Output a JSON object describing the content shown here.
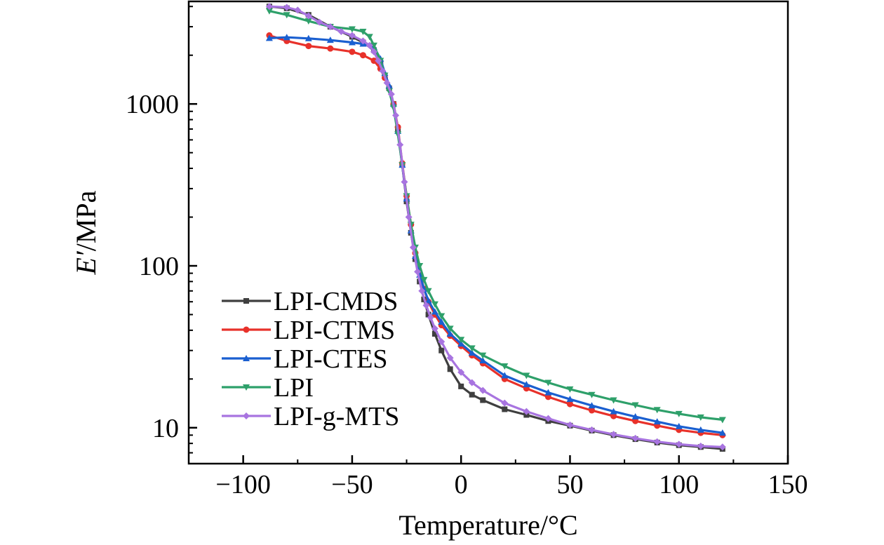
{
  "chart_data": {
    "type": "line",
    "xlabel": "Temperature/°C",
    "ylabel_italic": "E′",
    "ylabel_rest": "/MPa",
    "xlim": [
      -125,
      150
    ],
    "ylim": [
      6,
      4300
    ],
    "yscale": "log",
    "xticks": [
      -100,
      -50,
      0,
      50,
      100,
      150
    ],
    "xtick_labels": [
      "−100",
      "−50",
      "0",
      "50",
      "100",
      "150"
    ],
    "yticks": [
      10,
      100,
      1000
    ],
    "ytick_labels": [
      "10",
      "100",
      "1000"
    ],
    "grid": false,
    "legend_position": "bottom-left",
    "series": [
      {
        "name": "LPI-CMDS",
        "color": "#3f3f3f",
        "marker": "square",
        "points": [
          [
            -88,
            4000
          ],
          [
            -80,
            3900
          ],
          [
            -70,
            3550
          ],
          [
            -60,
            3000
          ],
          [
            -50,
            2600
          ],
          [
            -45,
            2400
          ],
          [
            -40,
            2150
          ],
          [
            -37,
            1800
          ],
          [
            -35,
            1500
          ],
          [
            -33,
            1250
          ],
          [
            -31,
            1000
          ],
          [
            -29,
            700
          ],
          [
            -27,
            420
          ],
          [
            -25,
            250
          ],
          [
            -23,
            160
          ],
          [
            -21,
            110
          ],
          [
            -19,
            80
          ],
          [
            -17,
            62
          ],
          [
            -15,
            50
          ],
          [
            -12,
            38
          ],
          [
            -9,
            30
          ],
          [
            -5,
            23
          ],
          [
            0,
            18
          ],
          [
            5,
            16
          ],
          [
            10,
            14.8
          ],
          [
            20,
            13
          ],
          [
            30,
            12
          ],
          [
            40,
            11
          ],
          [
            50,
            10.3
          ],
          [
            60,
            9.6
          ],
          [
            70,
            9
          ],
          [
            80,
            8.5
          ],
          [
            90,
            8.1
          ],
          [
            100,
            7.8
          ],
          [
            110,
            7.6
          ],
          [
            120,
            7.4
          ]
        ]
      },
      {
        "name": "LPI-CTMS",
        "color": "#e8312a",
        "marker": "circle",
        "points": [
          [
            -88,
            2650
          ],
          [
            -80,
            2450
          ],
          [
            -70,
            2280
          ],
          [
            -60,
            2200
          ],
          [
            -50,
            2100
          ],
          [
            -45,
            2000
          ],
          [
            -40,
            1850
          ],
          [
            -37,
            1650
          ],
          [
            -35,
            1450
          ],
          [
            -33,
            1250
          ],
          [
            -31,
            1000
          ],
          [
            -29,
            720
          ],
          [
            -27,
            430
          ],
          [
            -25,
            270
          ],
          [
            -23,
            180
          ],
          [
            -21,
            120
          ],
          [
            -19,
            90
          ],
          [
            -17,
            72
          ],
          [
            -15,
            60
          ],
          [
            -12,
            50
          ],
          [
            -9,
            43
          ],
          [
            -5,
            37
          ],
          [
            0,
            32
          ],
          [
            5,
            28
          ],
          [
            10,
            25
          ],
          [
            20,
            20
          ],
          [
            30,
            17.5
          ],
          [
            40,
            15.5
          ],
          [
            50,
            14
          ],
          [
            60,
            12.8
          ],
          [
            70,
            11.8
          ],
          [
            80,
            11
          ],
          [
            90,
            10.3
          ],
          [
            100,
            9.7
          ],
          [
            110,
            9.3
          ],
          [
            120,
            9
          ]
        ]
      },
      {
        "name": "LPI-CTES",
        "color": "#1a5fd0",
        "marker": "triangle-up",
        "points": [
          [
            -88,
            2550
          ],
          [
            -80,
            2580
          ],
          [
            -70,
            2540
          ],
          [
            -60,
            2480
          ],
          [
            -50,
            2400
          ],
          [
            -45,
            2350
          ],
          [
            -40,
            2250
          ],
          [
            -37,
            1900
          ],
          [
            -35,
            1550
          ],
          [
            -33,
            1300
          ],
          [
            -31,
            1000
          ],
          [
            -29,
            680
          ],
          [
            -27,
            420
          ],
          [
            -25,
            260
          ],
          [
            -23,
            165
          ],
          [
            -21,
            115
          ],
          [
            -19,
            88
          ],
          [
            -17,
            72
          ],
          [
            -15,
            61
          ],
          [
            -12,
            52
          ],
          [
            -9,
            45
          ],
          [
            -5,
            38
          ],
          [
            0,
            33
          ],
          [
            5,
            29
          ],
          [
            10,
            26
          ],
          [
            20,
            21
          ],
          [
            30,
            18.5
          ],
          [
            40,
            16.5
          ],
          [
            50,
            15
          ],
          [
            60,
            13.7
          ],
          [
            70,
            12.6
          ],
          [
            80,
            11.7
          ],
          [
            90,
            10.9
          ],
          [
            100,
            10.2
          ],
          [
            110,
            9.7
          ],
          [
            120,
            9.3
          ]
        ]
      },
      {
        "name": "LPI",
        "color": "#2ea06a",
        "marker": "triangle-down",
        "points": [
          [
            -88,
            3750
          ],
          [
            -80,
            3550
          ],
          [
            -70,
            3250
          ],
          [
            -60,
            3000
          ],
          [
            -50,
            2900
          ],
          [
            -45,
            2800
          ],
          [
            -42,
            2600
          ],
          [
            -40,
            2300
          ],
          [
            -37,
            1850
          ],
          [
            -35,
            1500
          ],
          [
            -33,
            1200
          ],
          [
            -31,
            950
          ],
          [
            -29,
            650
          ],
          [
            -27,
            420
          ],
          [
            -25,
            270
          ],
          [
            -23,
            180
          ],
          [
            -21,
            130
          ],
          [
            -19,
            100
          ],
          [
            -17,
            82
          ],
          [
            -15,
            70
          ],
          [
            -12,
            58
          ],
          [
            -9,
            49
          ],
          [
            -5,
            41
          ],
          [
            0,
            35
          ],
          [
            5,
            31
          ],
          [
            10,
            28
          ],
          [
            20,
            24
          ],
          [
            30,
            21
          ],
          [
            40,
            19
          ],
          [
            50,
            17.3
          ],
          [
            60,
            16
          ],
          [
            70,
            14.8
          ],
          [
            80,
            13.8
          ],
          [
            90,
            12.9
          ],
          [
            100,
            12.2
          ],
          [
            110,
            11.6
          ],
          [
            120,
            11.2
          ]
        ]
      },
      {
        "name": "LPI-g-MTS",
        "color": "#a874e0",
        "marker": "diamond",
        "points": [
          [
            -88,
            4000
          ],
          [
            -80,
            3950
          ],
          [
            -75,
            3800
          ],
          [
            -70,
            3500
          ],
          [
            -65,
            3200
          ],
          [
            -60,
            3000
          ],
          [
            -55,
            2800
          ],
          [
            -50,
            2650
          ],
          [
            -45,
            2450
          ],
          [
            -42,
            2300
          ],
          [
            -40,
            2100
          ],
          [
            -38,
            1850
          ],
          [
            -36,
            1600
          ],
          [
            -34,
            1350
          ],
          [
            -32,
            1150
          ],
          [
            -30,
            850
          ],
          [
            -28,
            560
          ],
          [
            -26,
            330
          ],
          [
            -24,
            200
          ],
          [
            -22,
            130
          ],
          [
            -20,
            92
          ],
          [
            -18,
            70
          ],
          [
            -16,
            57
          ],
          [
            -14,
            48
          ],
          [
            -12,
            41
          ],
          [
            -9,
            34
          ],
          [
            -5,
            27
          ],
          [
            0,
            22
          ],
          [
            5,
            19
          ],
          [
            10,
            17
          ],
          [
            20,
            14.2
          ],
          [
            30,
            12.6
          ],
          [
            40,
            11.4
          ],
          [
            50,
            10.4
          ],
          [
            60,
            9.7
          ],
          [
            70,
            9.1
          ],
          [
            80,
            8.6
          ],
          [
            90,
            8.2
          ],
          [
            100,
            7.9
          ],
          [
            110,
            7.7
          ],
          [
            120,
            7.6
          ]
        ]
      }
    ]
  }
}
